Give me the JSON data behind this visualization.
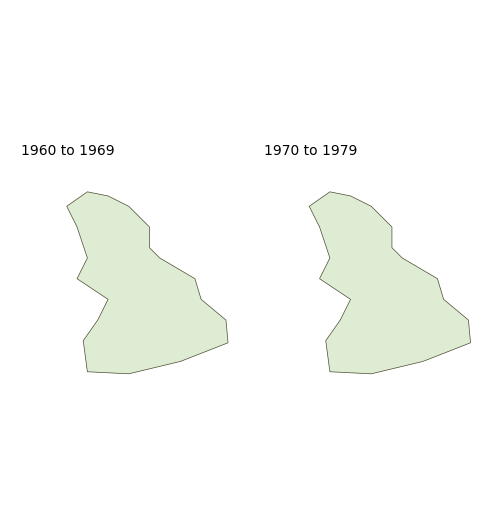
{
  "title_left": "1960 to 1969",
  "title_right": "1970 to 1979",
  "bg": "#ffffff",
  "col_default": "#deecd3",
  "col_dark": "#2e8b40",
  "col_medium": "#5db85d",
  "col_light": "#a8d4a0",
  "col_border": "#4a4a30",
  "lw": 0.4,
  "title_fs": 10,
  "figsize": [
    5.0,
    5.16
  ],
  "dpi": 100
}
